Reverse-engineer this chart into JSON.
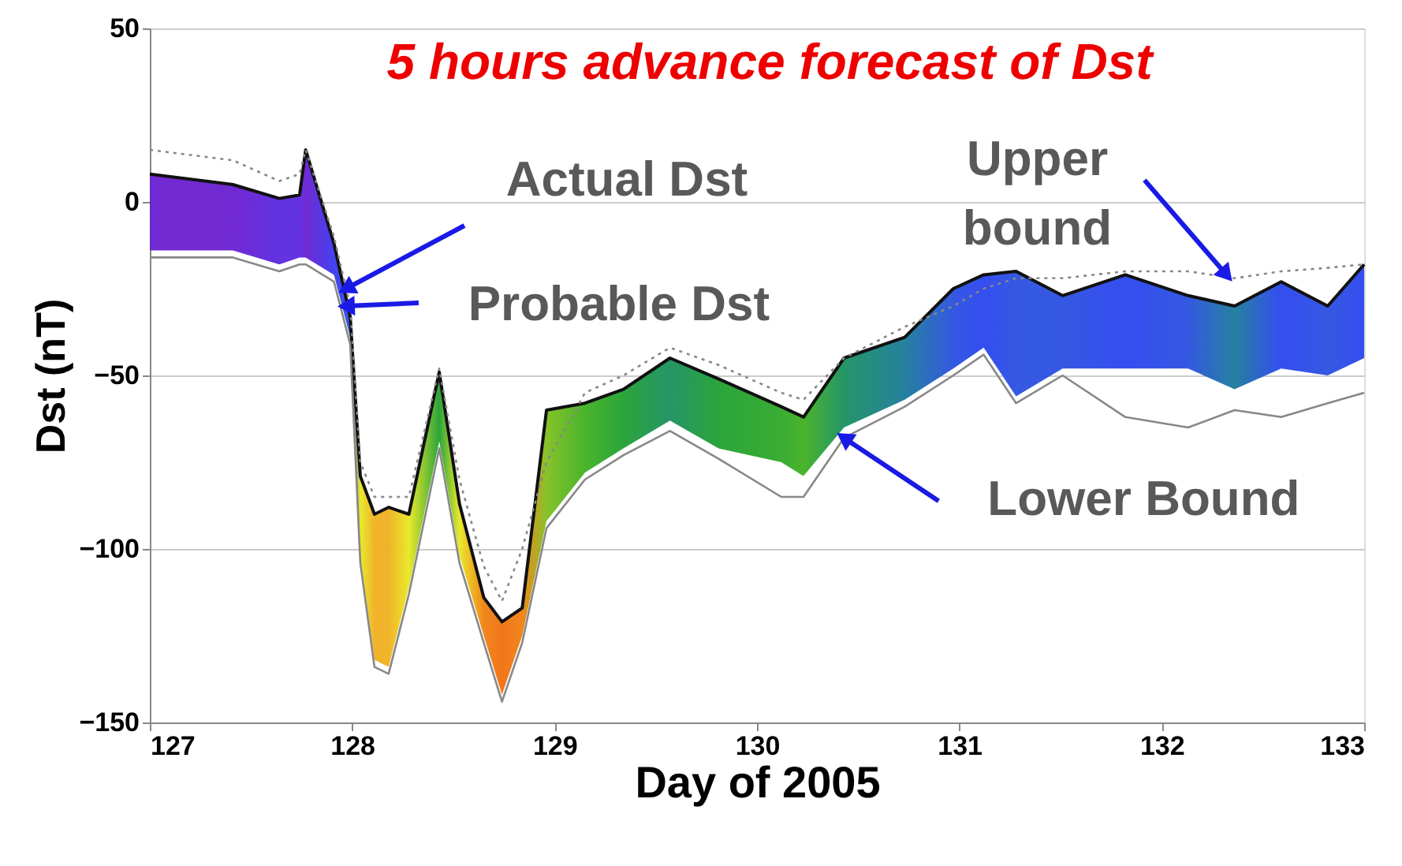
{
  "chart_data": {
    "type": "line",
    "title": "5 hours advance forecast of Dst",
    "xlabel": "Day of 2005",
    "ylabel": "Dst (nT)",
    "x": [
      127.0,
      127.41,
      127.64,
      127.74,
      127.77,
      127.91,
      127.99,
      128.04,
      128.11,
      128.18,
      128.28,
      128.43,
      128.53,
      128.65,
      128.74,
      128.84,
      128.96,
      129.15,
      129.34,
      129.57,
      129.81,
      130.12,
      130.23,
      130.43,
      130.73,
      130.97,
      131.12,
      131.28,
      131.51,
      131.82,
      132.13,
      132.36,
      132.59,
      132.82,
      133.0
    ],
    "series": [
      {
        "color": "#111111",
        "line_style": "solid",
        "colors": [
          "#6a1fd0",
          "#6a1fd0",
          "#5a28e0",
          "#5a28e0",
          "#6a1fd0",
          "#3a38f0",
          "#2a50e0",
          "#e8e820",
          "#f0b020",
          "#f0b020",
          "#e8e820",
          "#20a030",
          "#e8e820",
          "#f08010",
          "#f07010",
          "#f08010",
          "#80c020",
          "#40b020",
          "#20a030",
          "#1a9060",
          "#20a030",
          "#30a828",
          "#40b020",
          "#1a9060",
          "#1a7a9a",
          "#2a50e0",
          "#2a44f0",
          "#2a50e0",
          "#2a50e0",
          "#2a44f0",
          "#2a50e0",
          "#1a7a9a",
          "#2a44f0",
          "#2a50e0",
          "#2a44f0"
        ],
        "values": [
          8,
          5,
          1,
          2,
          15,
          -12,
          -33,
          -79,
          -90,
          -88,
          -90,
          -49,
          -87,
          -114,
          -121,
          -117,
          -60,
          -58,
          -54,
          -45,
          -51,
          -59,
          -62,
          -45,
          -39,
          -25,
          -21,
          -20,
          -27,
          -21,
          -27,
          -30,
          -23,
          -30,
          -18
        ],
        "upper": [
          8,
          5,
          1,
          2,
          15,
          -12,
          -33,
          -79,
          -90,
          -88,
          -90,
          -49,
          -87,
          -114,
          -121,
          -117,
          -60,
          -58,
          -54,
          -45,
          -51,
          -59,
          -62,
          -45,
          -39,
          -25,
          -21,
          -20,
          -27,
          -21,
          -27,
          -30,
          -23,
          -30,
          -18
        ],
        "lower": [
          -14,
          -14,
          -18,
          -16,
          -16,
          -21,
          -39,
          -102,
          -132,
          -134,
          -111,
          -69,
          -102,
          -125,
          -142,
          -125,
          -92,
          -78,
          -71,
          -63,
          -71,
          -75,
          -79,
          -65,
          -57,
          -48,
          -42,
          -56,
          -48,
          -48,
          -48,
          -54,
          -48,
          -50,
          -45
        ]
      },
      {
        "color": "#888888",
        "line_style": "dotted",
        "values": [
          15,
          12,
          6,
          8,
          15,
          -10,
          -30,
          -75,
          -85,
          -85,
          -85,
          -48,
          -80,
          -105,
          -115,
          -100,
          -75,
          -55,
          -50,
          -42,
          -47,
          -55,
          -57,
          -45,
          -36,
          -30,
          -25,
          -22,
          -22,
          -20,
          -20,
          -22,
          -20,
          -19,
          -18
        ]
      },
      {
        "color": "#888888",
        "line_style": "solid",
        "values": [
          -16,
          -16,
          -20,
          -18,
          -18,
          -23,
          -41,
          -104,
          -134,
          -136,
          -113,
          -71,
          -104,
          -127,
          -144,
          -127,
          -94,
          -80,
          -73,
          -66,
          -74,
          -85,
          -85,
          -68,
          -59,
          -50,
          -44,
          -58,
          -50,
          -62,
          -65,
          -60,
          -62,
          -58,
          -55
        ]
      }
    ],
    "annotations": [
      {
        "text": "Actual Dst",
        "x": 127.97,
        "y": -25
      },
      {
        "text": "Probable Dst",
        "x": 127.97,
        "y": -30
      },
      {
        "text": "Upper\nbound",
        "x": 132.32,
        "y": -21
      },
      {
        "text": "Lower Bound",
        "x": 130.43,
        "y": -68
      }
    ],
    "xlim": [
      127,
      133
    ],
    "xticks": [
      127,
      128,
      129,
      130,
      131,
      132,
      133
    ],
    "ylim": [
      -150,
      50
    ],
    "yticks": [
      -150,
      -100,
      -50,
      0,
      50
    ],
    "grid": "y",
    "marker": "none"
  }
}
